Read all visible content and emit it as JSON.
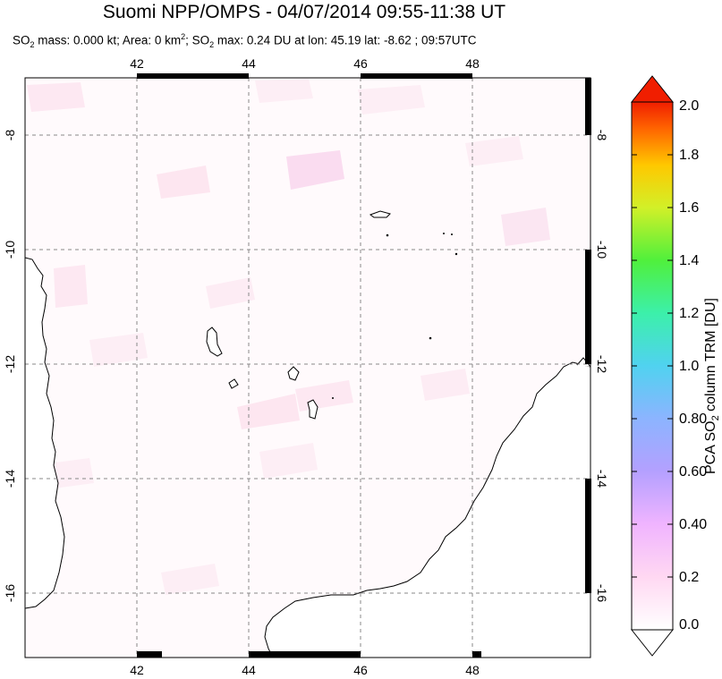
{
  "title": "Suomi NPP/OMPS - 04/07/2014 09:55-11:38 UT",
  "subtitle": {
    "p1": "SO",
    "p1_sub": "2",
    "p2": " mass: 0.000 kt; Area: 0 km",
    "p2_sup": "2",
    "p3": "; SO",
    "p3_sub": "2",
    "p4": " max: 0.24 DU at lon: 45.19 lat: -8.62 ; 09:57UTC"
  },
  "map": {
    "lon_ticks": [
      "42",
      "44",
      "46",
      "48"
    ],
    "lat_ticks": [
      "-8",
      "-10",
      "-12",
      "-14",
      "-16"
    ],
    "lon_range": [
      40,
      50
    ],
    "lat_range": [
      -17.1,
      -7.0
    ],
    "land_color": "#ffffff",
    "ocean_tint": "#fdf5f8"
  },
  "colorbar": {
    "ticks": [
      "2.0",
      "1.8",
      "1.6",
      "1.4",
      "1.2",
      "1.0",
      "0.80",
      "0.60",
      "0.40",
      "0.2",
      "0.0"
    ],
    "title_a": "PCA SO",
    "title_sub": "2",
    "title_b": " column TRM [DU]",
    "colors": [
      "#ffffff",
      "#ffc8f0",
      "#c8a0ff",
      "#96a0ff",
      "#64d2ff",
      "#32f0c8",
      "#32f050",
      "#c8f032",
      "#ffd200",
      "#ff8c00",
      "#ff1e00",
      "#c80000"
    ]
  }
}
